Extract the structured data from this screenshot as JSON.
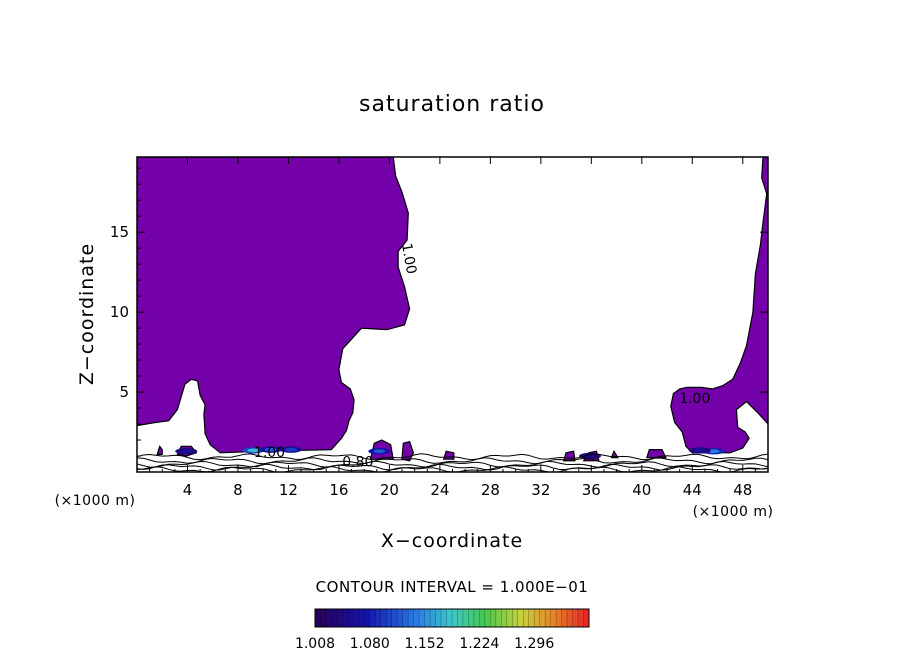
{
  "chart_data": {
    "type": "heatmap",
    "title": "saturation ratio",
    "xlabel": "X−coordinate",
    "ylabel": "Z−coordinate",
    "x_unit": "(×1000 m)",
    "z_unit": "(×1000 m)",
    "xlim": [
      0,
      50
    ],
    "ylim": [
      0,
      19.7
    ],
    "x_ticks": [
      4,
      8,
      12,
      16,
      20,
      24,
      28,
      32,
      36,
      40,
      44,
      48
    ],
    "y_ticks": [
      5,
      10,
      15
    ],
    "fill_color": "#7300a8",
    "regions": [
      {
        "name": "saturated region west",
        "polygon": [
          [
            0,
            19.7
          ],
          [
            20.3,
            19.7
          ],
          [
            20.5,
            18.5
          ],
          [
            21.0,
            17.5
          ],
          [
            21.5,
            16.2
          ],
          [
            21.4,
            14.5
          ],
          [
            20.7,
            13.8
          ],
          [
            20.7,
            12.8
          ],
          [
            21.2,
            11.6
          ],
          [
            21.6,
            10.2
          ],
          [
            21.2,
            9.2
          ],
          [
            19.8,
            8.9
          ],
          [
            17.8,
            9.0
          ],
          [
            16.3,
            7.7
          ],
          [
            16.0,
            6.4
          ],
          [
            16.2,
            5.6
          ],
          [
            16.9,
            5.2
          ],
          [
            17.2,
            4.5
          ],
          [
            17.1,
            3.7
          ],
          [
            16.8,
            3.2
          ],
          [
            16.6,
            2.6
          ],
          [
            16.2,
            2.1
          ],
          [
            15.4,
            1.4
          ],
          [
            10.0,
            1.3
          ],
          [
            6.6,
            1.2
          ],
          [
            5.8,
            1.7
          ],
          [
            5.4,
            2.4
          ],
          [
            5.3,
            3.6
          ],
          [
            5.4,
            4.2
          ],
          [
            5.0,
            4.8
          ],
          [
            4.8,
            5.7
          ],
          [
            4.3,
            5.8
          ],
          [
            3.8,
            5.5
          ],
          [
            3.5,
            4.7
          ],
          [
            3.2,
            3.9
          ],
          [
            2.5,
            3.2
          ],
          [
            1.5,
            3.1
          ],
          [
            0,
            2.9
          ]
        ]
      },
      {
        "name": "saturated region east",
        "polygon": [
          [
            50,
            19.7
          ],
          [
            49.6,
            19.7
          ],
          [
            49.5,
            18.4
          ],
          [
            49.9,
            17.4
          ],
          [
            49.6,
            15.6
          ],
          [
            49.4,
            14.2
          ],
          [
            49.0,
            12.4
          ],
          [
            48.8,
            10.0
          ],
          [
            48.3,
            7.9
          ],
          [
            47.8,
            6.8
          ],
          [
            47.2,
            5.8
          ],
          [
            46.4,
            5.4
          ],
          [
            45.6,
            5.2
          ],
          [
            44.7,
            5.3
          ],
          [
            43.6,
            5.3
          ],
          [
            43.0,
            5.2
          ],
          [
            42.5,
            4.9
          ],
          [
            42.3,
            4.1
          ],
          [
            42.6,
            3.1
          ],
          [
            43.2,
            2.5
          ],
          [
            43.5,
            1.6
          ],
          [
            44.0,
            1.2
          ],
          [
            47.0,
            1.2
          ],
          [
            48.0,
            1.5
          ],
          [
            48.5,
            2.1
          ],
          [
            48.2,
            2.5
          ],
          [
            47.6,
            2.8
          ],
          [
            47.5,
            3.9
          ],
          [
            48.3,
            4.4
          ],
          [
            48.8,
            4.0
          ],
          [
            49.2,
            3.7
          ],
          [
            50,
            3.0
          ]
        ]
      },
      {
        "name": "cloudlet 1",
        "polygon": [
          [
            1.6,
            1.1
          ],
          [
            1.8,
            1.6
          ],
          [
            2.0,
            1.4
          ],
          [
            2.0,
            1.1
          ]
        ]
      },
      {
        "name": "cloudlet 2",
        "polygon": [
          [
            3.2,
            1.1
          ],
          [
            3.5,
            1.6
          ],
          [
            4.3,
            1.6
          ],
          [
            4.7,
            1.2
          ],
          [
            3.9,
            1.0
          ]
        ]
      },
      {
        "name": "cloudlet 3",
        "polygon": [
          [
            18.5,
            0.8
          ],
          [
            18.8,
            1.8
          ],
          [
            19.4,
            2.0
          ],
          [
            20.1,
            1.7
          ],
          [
            20.3,
            0.8
          ]
        ]
      },
      {
        "name": "cloudlet 4",
        "polygon": [
          [
            21.0,
            0.8
          ],
          [
            21.1,
            1.8
          ],
          [
            21.6,
            1.9
          ],
          [
            21.9,
            1.2
          ],
          [
            21.6,
            0.7
          ]
        ]
      },
      {
        "name": "cloudlet 5",
        "polygon": [
          [
            24.3,
            0.8
          ],
          [
            24.5,
            1.3
          ],
          [
            25.1,
            1.2
          ],
          [
            25.1,
            0.8
          ]
        ]
      },
      {
        "name": "cloudlet 6",
        "polygon": [
          [
            33.8,
            0.7
          ],
          [
            34.0,
            1.2
          ],
          [
            34.6,
            1.3
          ],
          [
            34.7,
            0.7
          ]
        ]
      },
      {
        "name": "cloudlet 7",
        "polygon": [
          [
            35.4,
            0.7
          ],
          [
            35.8,
            1.2
          ],
          [
            36.4,
            1.3
          ],
          [
            36.6,
            0.7
          ]
        ]
      },
      {
        "name": "cloudlet 8",
        "polygon": [
          [
            40.4,
            0.9
          ],
          [
            40.6,
            1.4
          ],
          [
            41.6,
            1.4
          ],
          [
            41.9,
            0.9
          ]
        ]
      },
      {
        "name": "cloudlet 9",
        "polygon": [
          [
            37.6,
            0.9
          ],
          [
            37.8,
            1.3
          ],
          [
            38.1,
            0.9
          ]
        ]
      }
    ],
    "hotspots": [
      {
        "x": 9.2,
        "z": 1.35,
        "value": 1.18
      },
      {
        "x": 10.6,
        "z": 1.4,
        "value": 1.12
      },
      {
        "x": 12.2,
        "z": 1.4,
        "value": 1.1
      },
      {
        "x": 19.2,
        "z": 1.3,
        "value": 1.12
      },
      {
        "x": 3.9,
        "z": 1.3,
        "value": 1.06
      },
      {
        "x": 45.7,
        "z": 1.3,
        "value": 1.14
      },
      {
        "x": 44.6,
        "z": 1.35,
        "value": 1.06
      },
      {
        "x": 35.9,
        "z": 1.0,
        "value": 1.04
      }
    ],
    "contour_labels": [
      {
        "text": "1.00",
        "x": 21.2,
        "z": 13.3,
        "rotate": -80
      },
      {
        "text": "1.00",
        "x": 44.2,
        "z": 4.3,
        "rotate": 0
      },
      {
        "text": "1.00",
        "x": 10.5,
        "z": 0.95,
        "rotate": 0
      },
      {
        "text": "0.80",
        "x": 17.5,
        "z": 0.35,
        "rotate": 0
      }
    ],
    "colorbar": {
      "title": "CONTOUR INTERVAL = 1.000E−01",
      "vmin": 1.008,
      "vmax": 1.368,
      "tick_labels": [
        "1.008",
        "1.080",
        "1.152",
        "1.224",
        "1.296"
      ]
    }
  }
}
